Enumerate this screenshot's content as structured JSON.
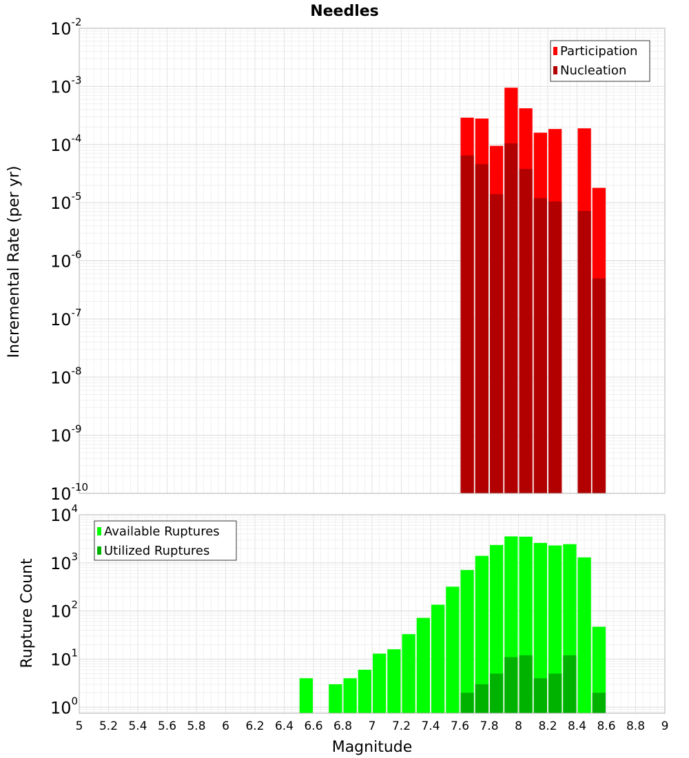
{
  "chart_data": [
    {
      "type": "bar",
      "title": "Needles",
      "ylabel": "Incremental Rate (per yr)",
      "yscale": "log",
      "ylim": [
        1e-10,
        0.01
      ],
      "xlim": [
        5,
        9
      ],
      "grid": true,
      "legend_position": "top-right",
      "y_ticks": [
        {
          "base": "10",
          "exp": "-2"
        },
        {
          "base": "10",
          "exp": "-3"
        },
        {
          "base": "10",
          "exp": "-4"
        },
        {
          "base": "10",
          "exp": "-5"
        },
        {
          "base": "10",
          "exp": "-6"
        },
        {
          "base": "10",
          "exp": "-7"
        },
        {
          "base": "10",
          "exp": "-8"
        },
        {
          "base": "10",
          "exp": "-9"
        },
        {
          "base": "10",
          "exp": "-10"
        }
      ],
      "x": [
        7.65,
        7.75,
        7.85,
        7.95,
        8.05,
        8.15,
        8.25,
        8.45,
        8.55
      ],
      "series": [
        {
          "name": "Participation",
          "color": "#ff0000",
          "values": [
            0.00029,
            0.00028,
            9.5e-05,
            0.00095,
            0.00042,
            0.00016,
            0.000185,
            0.00019,
            1.8e-05
          ]
        },
        {
          "name": "Nucleation",
          "color": "#b20000",
          "values": [
            6.5e-05,
            4.6e-05,
            1.4e-05,
            0.000105,
            3.8e-05,
            1.2e-05,
            1.05e-05,
            7.2e-06,
            5e-07
          ]
        }
      ]
    },
    {
      "type": "bar",
      "xlabel": "Magnitude",
      "ylabel": "Rupture Count",
      "yscale": "log",
      "ylim": [
        0.75,
        10000
      ],
      "xlim": [
        5,
        9
      ],
      "grid": true,
      "legend_position": "top-left",
      "y_ticks": [
        {
          "base": "10",
          "exp": "4"
        },
        {
          "base": "10",
          "exp": "3"
        },
        {
          "base": "10",
          "exp": "2"
        },
        {
          "base": "10",
          "exp": "1"
        },
        {
          "base": "10",
          "exp": "0"
        }
      ],
      "x_ticks": [
        "5",
        "5.2",
        "5.4",
        "5.6",
        "5.8",
        "6",
        "6.2",
        "6.4",
        "6.6",
        "6.8",
        "7",
        "7.2",
        "7.4",
        "7.6",
        "7.8",
        "8",
        "8.2",
        "8.4",
        "8.6",
        "8.8",
        "9"
      ],
      "x": [
        6.55,
        6.75,
        6.85,
        6.95,
        7.05,
        7.15,
        7.25,
        7.35,
        7.45,
        7.55,
        7.65,
        7.75,
        7.85,
        7.95,
        8.05,
        8.15,
        8.25,
        8.35,
        8.45,
        8.55
      ],
      "series": [
        {
          "name": "Available Ruptures",
          "color": "#00ff00",
          "values": [
            4,
            3,
            4,
            6,
            13,
            16,
            33,
            72,
            135,
            320,
            710,
            1400,
            2350,
            3550,
            3500,
            2600,
            2300,
            2450,
            1300,
            47
          ]
        },
        {
          "name": "Utilized Ruptures",
          "color": "#00b200",
          "values": [
            null,
            null,
            null,
            null,
            null,
            null,
            null,
            null,
            null,
            null,
            2,
            3,
            5,
            11,
            12,
            4,
            5,
            12,
            null,
            2
          ]
        }
      ]
    }
  ]
}
